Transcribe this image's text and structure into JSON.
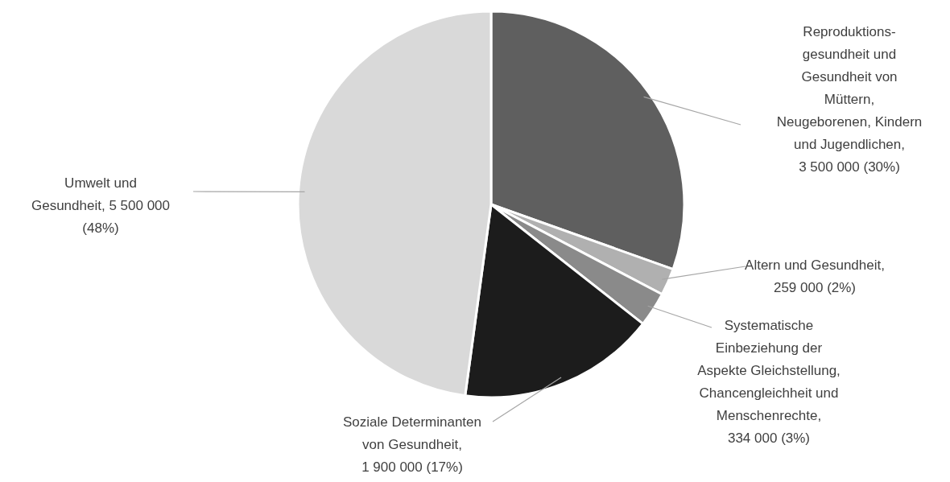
{
  "chart_data": {
    "type": "pie",
    "categories": [
      "Reproduktions-\ngesundheit und\nGesundheit von\nMüttern,\nNeugeborenen, Kindern\nund Jugendlichen",
      "Altern und Gesundheit",
      "Systematische\nEinbeziehung der\nAspekte Gleichstellung,\nChancengleichheit und\nMenschenrechte",
      "Soziale Determinanten\nvon Gesundheit",
      "Umwelt und\nGesundheit"
    ],
    "values": [
      3500000,
      259000,
      334000,
      1900000,
      5500000
    ],
    "value_labels": [
      ",\n3 500 000 (30%)",
      ",\n259 000 (2%)",
      ",\n334 000 (3%)",
      ",\n1 900 000 (17%)",
      ", 5 500 000\n(48%)"
    ],
    "colors": [
      "#5f5f5f",
      "#b0b0b0",
      "#8a8a8a",
      "#1c1c1c",
      "#d9d9d9"
    ],
    "legend": false
  }
}
